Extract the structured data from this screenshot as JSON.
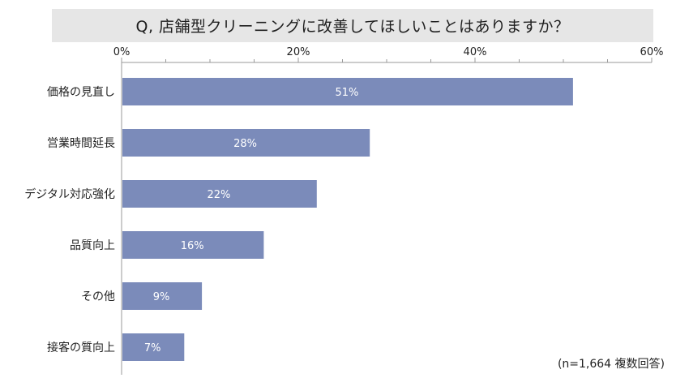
{
  "chart_data": {
    "type": "bar",
    "orientation": "horizontal",
    "title": "Q, 店舗型クリーニングに改善してほしいことはありますか？",
    "categories": [
      "価格の見直し",
      "営業時間延長",
      "デジタル対応強化",
      "品質向上",
      "その他",
      "接客の質向上"
    ],
    "values": [
      51,
      28,
      22,
      16,
      9,
      7
    ],
    "data_labels": [
      "51%",
      "28%",
      "22%",
      "16%",
      "9%",
      "7%"
    ],
    "xlim": [
      0,
      60
    ],
    "x_ticks": [
      0,
      20,
      40,
      60
    ],
    "x_tick_labels": [
      "0%",
      "20%",
      "40%",
      "60%"
    ],
    "x_axis_position": "top",
    "grid": false,
    "bar_color": "#7b8bba",
    "note": "(n=1,664 複数回答)"
  }
}
